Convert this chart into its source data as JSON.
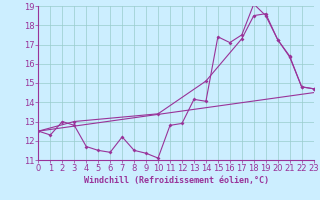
{
  "xlabel": "Windchill (Refroidissement éolien,°C)",
  "bg_color": "#cceeff",
  "line_color": "#993399",
  "grid_color": "#99cccc",
  "axis_color": "#993399",
  "xmin": 0,
  "xmax": 23,
  "ymin": 11,
  "ymax": 19,
  "xticks": [
    0,
    1,
    2,
    3,
    4,
    5,
    6,
    7,
    8,
    9,
    10,
    11,
    12,
    13,
    14,
    15,
    16,
    17,
    18,
    19,
    20,
    21,
    22,
    23
  ],
  "yticks": [
    11,
    12,
    13,
    14,
    15,
    16,
    17,
    18,
    19
  ],
  "line1_x": [
    0,
    1,
    2,
    3,
    4,
    5,
    6,
    7,
    8,
    9,
    10,
    11,
    12,
    13,
    14,
    15,
    16,
    17,
    18,
    19,
    20,
    21,
    22,
    23
  ],
  "line1_y": [
    12.5,
    12.3,
    13.0,
    12.8,
    11.7,
    11.5,
    11.4,
    12.2,
    11.5,
    11.35,
    11.1,
    12.8,
    12.9,
    14.15,
    14.05,
    17.4,
    17.1,
    17.5,
    19.1,
    18.5,
    17.25,
    16.35,
    14.8,
    14.7
  ],
  "line2_x": [
    0,
    3,
    10,
    14,
    17,
    18,
    19,
    20,
    21,
    22,
    23
  ],
  "line2_y": [
    12.5,
    13.0,
    13.4,
    15.1,
    17.3,
    18.5,
    18.6,
    17.25,
    16.4,
    14.8,
    14.7
  ],
  "line3_x": [
    0,
    23
  ],
  "line3_y": [
    12.5,
    14.5
  ],
  "tick_fontsize": 6,
  "label_fontsize": 6
}
